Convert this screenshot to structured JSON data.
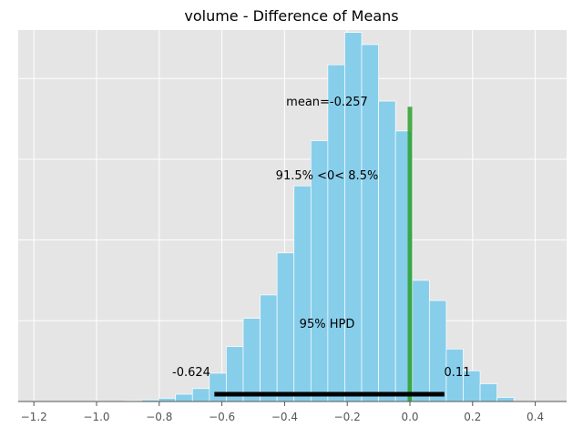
{
  "chart_data": {
    "type": "bar",
    "title": "volume - Difference of Means",
    "xlabel": "",
    "ylabel": "",
    "xlim": [
      -1.25,
      0.5
    ],
    "xticks": [
      -1.2,
      -1.0,
      -0.8,
      -0.6,
      -0.4,
      -0.2,
      0.0,
      0.2,
      0.4
    ],
    "xtick_labels": [
      "−1.2",
      "−1.0",
      "−0.8",
      "−0.6",
      "−0.4",
      "−0.2",
      "0.0",
      "0.2",
      "0.4"
    ],
    "ylim": [
      0,
      46
    ],
    "grid": true,
    "bin_width": 0.054,
    "bins": [
      {
        "x0": -0.91,
        "count": 0.1
      },
      {
        "x0": -0.856,
        "count": 0.2
      },
      {
        "x0": -0.802,
        "count": 0.4
      },
      {
        "x0": -0.748,
        "count": 0.9
      },
      {
        "x0": -0.694,
        "count": 1.6
      },
      {
        "x0": -0.64,
        "count": 3.5
      },
      {
        "x0": -0.586,
        "count": 6.8
      },
      {
        "x0": -0.532,
        "count": 10.3
      },
      {
        "x0": -0.478,
        "count": 13.2
      },
      {
        "x0": -0.424,
        "count": 18.4
      },
      {
        "x0": -0.37,
        "count": 26.7
      },
      {
        "x0": -0.316,
        "count": 32.3
      },
      {
        "x0": -0.262,
        "count": 41.7
      },
      {
        "x0": -0.208,
        "count": 45.7
      },
      {
        "x0": -0.154,
        "count": 44.2
      },
      {
        "x0": -0.1,
        "count": 37.2
      },
      {
        "x0": -0.046,
        "count": 33.5
      },
      {
        "x0": 0.008,
        "count": 15.0
      },
      {
        "x0": 0.062,
        "count": 12.5
      },
      {
        "x0": 0.116,
        "count": 6.5
      },
      {
        "x0": 0.17,
        "count": 3.8
      },
      {
        "x0": 0.224,
        "count": 2.2
      },
      {
        "x0": 0.278,
        "count": 0.5
      }
    ],
    "reference_line": {
      "x": 0.0,
      "y_top": 36.5,
      "color": "#2ca02c"
    },
    "hpd": {
      "low": -0.624,
      "high": 0.11,
      "low_label": "-0.624",
      "high_label": "0.11",
      "label": "95% HPD"
    },
    "annotations": {
      "mean_label": "mean=-0.257",
      "split_label": "91.5% <0< 8.5%"
    },
    "colors": {
      "background": "#e5e5e5",
      "grid": "#ffffff",
      "bar": "#87ceeb",
      "bar_edge": "#ffffff",
      "hpd_line": "#000000"
    }
  }
}
